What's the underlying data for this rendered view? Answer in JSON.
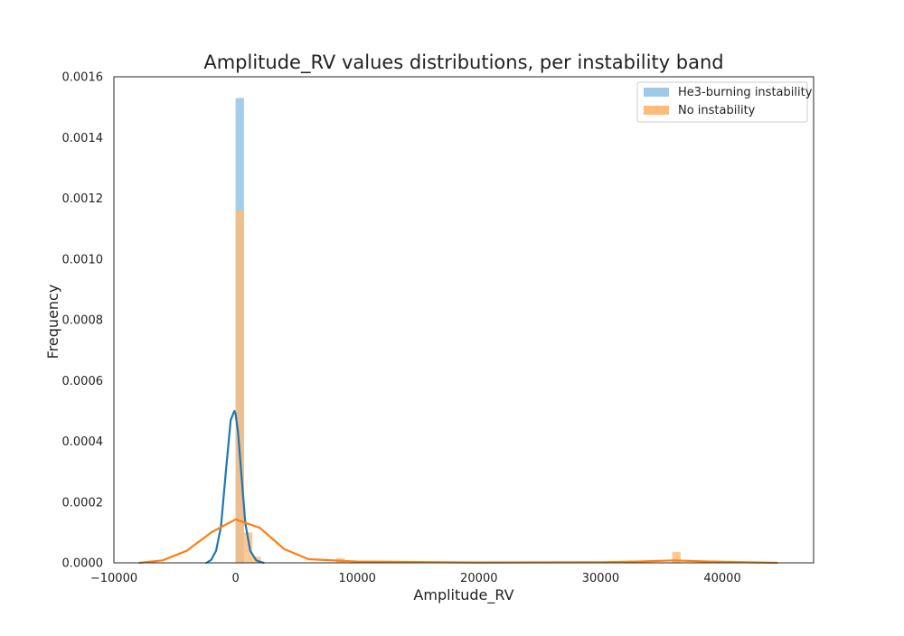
{
  "chart_data": {
    "type": "bar",
    "title": "Amplitude_RV values distributions, per instability band",
    "xlabel": "Amplitude_RV",
    "ylabel": "Frequency",
    "xlim": [
      -10000,
      47500
    ],
    "ylim": [
      0,
      0.0016
    ],
    "x_ticks": [
      "−10000",
      "0",
      "10000",
      "20000",
      "30000",
      "40000"
    ],
    "y_ticks": [
      "0.0000",
      "0.0002",
      "0.0004",
      "0.0006",
      "0.0008",
      "0.0010",
      "0.0012",
      "0.0014",
      "0.0016"
    ],
    "grid": false,
    "legend_position": "upper right",
    "series": [
      {
        "name": "He3-burning instability",
        "color": "#1f77b4",
        "fill": "#9ecae8",
        "bins": [
          {
            "x0": 0,
            "x1": 690,
            "y": 0.00153
          }
        ],
        "kde": [
          [
            -2400,
            0.0
          ],
          [
            -2000,
            1e-05
          ],
          [
            -1600,
            4e-05
          ],
          [
            -1200,
            0.00012
          ],
          [
            -800,
            0.0003
          ],
          [
            -400,
            0.00047
          ],
          [
            -100,
            0.0005
          ],
          [
            0,
            0.00049
          ],
          [
            200,
            0.00043
          ],
          [
            500,
            0.00028
          ],
          [
            800,
            0.00013
          ],
          [
            1200,
            4e-05
          ],
          [
            1700,
            8e-06
          ],
          [
            2300,
            0.0
          ]
        ]
      },
      {
        "name": "No instability",
        "color": "#ff7f0e",
        "fill": "#ffbb78",
        "bins": [
          {
            "x0": 0,
            "x1": 690,
            "y": 0.00116
          },
          {
            "x0": 690,
            "x1": 1380,
            "y": 0.0001
          },
          {
            "x0": 1380,
            "x1": 2070,
            "y": 2e-05
          },
          {
            "x0": 8280,
            "x1": 8970,
            "y": 1.5e-05
          },
          {
            "x0": 35880,
            "x1": 36570,
            "y": 3.6e-05
          }
        ],
        "kde": [
          [
            -7900,
            0.0
          ],
          [
            -6000,
            8e-06
          ],
          [
            -4000,
            4e-05
          ],
          [
            -2000,
            0.0001
          ],
          [
            0,
            0.000143
          ],
          [
            2000,
            0.000115
          ],
          [
            4000,
            4.5e-05
          ],
          [
            6000,
            1.2e-05
          ],
          [
            10000,
            4e-06
          ],
          [
            20000,
            1e-06
          ],
          [
            30000,
            2e-06
          ],
          [
            33000,
            4e-06
          ],
          [
            36000,
            8e-06
          ],
          [
            39000,
            4e-06
          ],
          [
            44500,
            0.0
          ]
        ]
      }
    ]
  }
}
